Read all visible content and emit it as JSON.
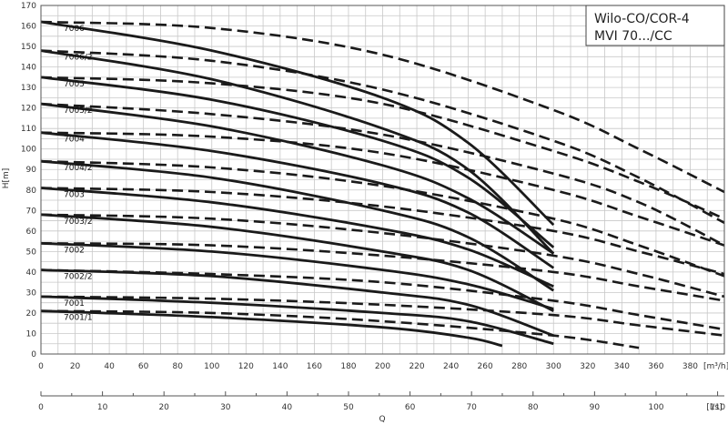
{
  "chart_data": {
    "type": "line",
    "title_lines": [
      "Wilo-CO/COR-4",
      "MVI 70.../CC"
    ],
    "ylabel": "H[m]",
    "xlabel": "Q",
    "x_unit_primary": "[m³/h]",
    "x_unit_secondary": "[l/s]",
    "xlim": [
      0,
      400
    ],
    "ylim": [
      0,
      170
    ],
    "xlim_secondary": [
      0,
      111.1
    ],
    "x_ticks": [
      0,
      20,
      40,
      60,
      80,
      100,
      120,
      140,
      160,
      180,
      200,
      220,
      240,
      260,
      280,
      300,
      320,
      340,
      360,
      380
    ],
    "y_ticks": [
      0,
      10,
      20,
      30,
      40,
      50,
      60,
      70,
      80,
      90,
      100,
      110,
      120,
      130,
      140,
      150,
      160,
      170
    ],
    "x_ticks_secondary": [
      0,
      10,
      20,
      30,
      40,
      50,
      60,
      70,
      80,
      90,
      100,
      110
    ],
    "grid": true,
    "series": [
      {
        "name": "7006",
        "solid": {
          "x": [
            0,
            100,
            200,
            250,
            300
          ],
          "y": [
            162,
            148,
            125,
            103,
            63
          ]
        },
        "dashed": {
          "x": [
            0,
            100,
            200,
            300,
            350,
            400
          ],
          "y": [
            162,
            159,
            146,
            119,
            100,
            79
          ]
        }
      },
      {
        "name": "7006/2",
        "solid": {
          "x": [
            0,
            100,
            200,
            250,
            300
          ],
          "y": [
            148,
            134,
            110,
            90,
            49
          ]
        },
        "dashed": {
          "x": [
            0,
            100,
            200,
            300,
            350,
            400
          ],
          "y": [
            148,
            143,
            129,
            104,
            86,
            64
          ]
        }
      },
      {
        "name": "7005",
        "solid": {
          "x": [
            0,
            100,
            200,
            250,
            300
          ],
          "y": [
            135,
            124,
            104,
            86,
            52
          ]
        },
        "dashed": {
          "x": [
            0,
            100,
            200,
            300,
            350,
            400
          ],
          "y": [
            135,
            132,
            122,
            99,
            84,
            66
          ]
        }
      },
      {
        "name": "7005/2",
        "solid": {
          "x": [
            0,
            100,
            200,
            250,
            300
          ],
          "y": [
            122,
            111,
            92,
            76,
            49
          ]
        },
        "dashed": {
          "x": [
            0,
            100,
            200,
            300,
            350,
            400
          ],
          "y": [
            122,
            117,
            107,
            88,
            74,
            53
          ]
        }
      },
      {
        "name": "7004",
        "solid": {
          "x": [
            0,
            100,
            200,
            250,
            300
          ],
          "y": [
            108,
            99,
            83,
            69,
            42
          ]
        },
        "dashed": {
          "x": [
            0,
            100,
            200,
            300,
            350,
            400
          ],
          "y": [
            108,
            106,
            98,
            80,
            67,
            53
          ]
        }
      },
      {
        "name": "7004/2",
        "solid": {
          "x": [
            0,
            100,
            200,
            250,
            300
          ],
          "y": [
            94,
            86,
            70,
            57,
            31
          ]
        },
        "dashed": {
          "x": [
            0,
            100,
            200,
            300,
            350,
            400
          ],
          "y": [
            94,
            91,
            82,
            66,
            53,
            38
          ]
        }
      },
      {
        "name": "7003",
        "solid": {
          "x": [
            0,
            100,
            200,
            250,
            300
          ],
          "y": [
            81,
            74,
            61,
            51,
            33
          ]
        },
        "dashed": {
          "x": [
            0,
            100,
            200,
            300,
            350,
            400
          ],
          "y": [
            81,
            79,
            72,
            60,
            50,
            39
          ]
        }
      },
      {
        "name": "7003/2",
        "solid": {
          "x": [
            0,
            100,
            200,
            250,
            300
          ],
          "y": [
            68,
            62,
            50,
            41,
            21
          ]
        },
        "dashed": {
          "x": [
            0,
            100,
            200,
            300,
            350,
            400
          ],
          "y": [
            68,
            66,
            59,
            48,
            39,
            28
          ]
        }
      },
      {
        "name": "7002",
        "solid": {
          "x": [
            0,
            100,
            200,
            250,
            300
          ],
          "y": [
            54,
            50,
            41,
            34,
            22
          ]
        },
        "dashed": {
          "x": [
            0,
            100,
            200,
            300,
            350,
            400
          ],
          "y": [
            54,
            53,
            48,
            40,
            33,
            26
          ]
        }
      },
      {
        "name": "7002/2",
        "solid": {
          "x": [
            0,
            100,
            200,
            250,
            300
          ],
          "y": [
            41,
            38,
            30,
            24,
            9
          ]
        },
        "dashed": {
          "x": [
            0,
            100,
            200,
            300,
            350,
            400
          ],
          "y": [
            41,
            39,
            35,
            26,
            19,
            12
          ]
        }
      },
      {
        "name": "7001",
        "solid": {
          "x": [
            0,
            100,
            200,
            250,
            300
          ],
          "y": [
            28,
            25,
            20,
            16,
            5
          ]
        },
        "dashed": {
          "x": [
            0,
            100,
            200,
            300,
            350,
            400
          ],
          "y": [
            28,
            27,
            24,
            19,
            14,
            9
          ]
        }
      },
      {
        "name": "7001/1",
        "solid": {
          "x": [
            0,
            100,
            200,
            250,
            270
          ],
          "y": [
            21,
            18,
            13,
            8,
            4
          ]
        },
        "dashed": {
          "x": [
            0,
            100,
            200,
            300,
            350
          ],
          "y": [
            21,
            20,
            16,
            9,
            3
          ]
        }
      }
    ]
  }
}
